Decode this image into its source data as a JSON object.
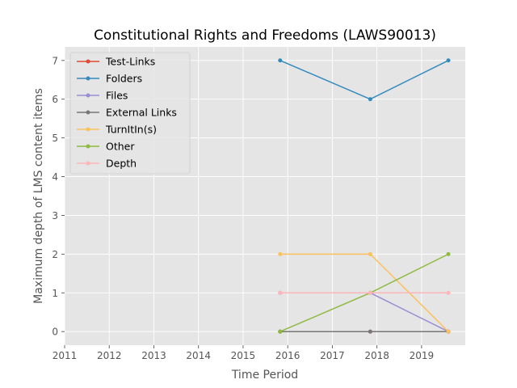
{
  "chart_data": {
    "type": "line",
    "title": "Constitutional Rights and Freedoms (LAWS90013)",
    "xlabel": "Time Period",
    "ylabel": "Maximum depth of LMS content items",
    "xlim": [
      2011,
      2019.98
    ],
    "ylim": [
      -0.35,
      7.35
    ],
    "xticks": [
      2011,
      2012,
      2013,
      2014,
      2015,
      2016,
      2017,
      2018,
      2019
    ],
    "yticks": [
      0,
      1,
      2,
      3,
      4,
      5,
      6,
      7
    ],
    "x": [
      2015.83,
      2017.85,
      2019.6
    ],
    "grid": true,
    "legend_position": "top-left",
    "series": [
      {
        "name": "Test-Links",
        "color": "#E24A33",
        "values": [
          0,
          0,
          0
        ]
      },
      {
        "name": "Folders",
        "color": "#348ABD",
        "values": [
          7,
          6,
          7
        ]
      },
      {
        "name": "Files",
        "color": "#988ED5",
        "values": [
          1,
          1,
          0
        ]
      },
      {
        "name": "External Links",
        "color": "#777777",
        "values": [
          0,
          0,
          0
        ]
      },
      {
        "name": "TurnItIn(s)",
        "color": "#FBC15E",
        "values": [
          2,
          2,
          0
        ]
      },
      {
        "name": "Other",
        "color": "#8EBA42",
        "values": [
          0,
          1,
          2
        ]
      },
      {
        "name": "Depth",
        "color": "#FFB5B8",
        "values": [
          1,
          1,
          1
        ]
      }
    ]
  }
}
